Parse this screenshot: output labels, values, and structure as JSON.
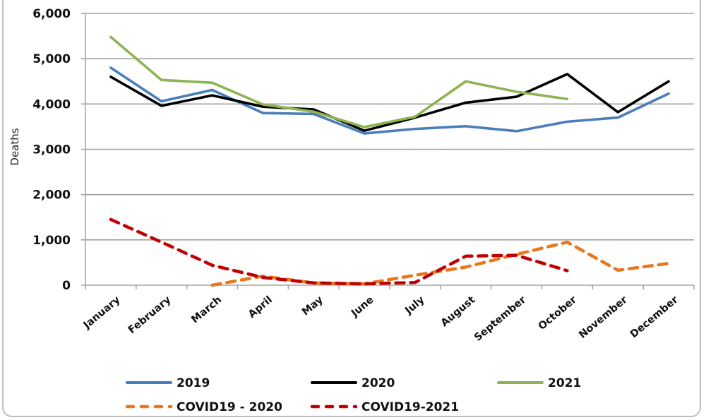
{
  "chart_data": {
    "type": "line",
    "title": "",
    "xlabel": "",
    "ylabel": "Deaths",
    "ylim": [
      0,
      6000
    ],
    "yticks": [
      0,
      1000,
      2000,
      3000,
      4000,
      5000,
      6000
    ],
    "ytick_labels": [
      "0",
      "1,000",
      "2,000",
      "3,000",
      "4,000",
      "5,000",
      "6,000"
    ],
    "grid": "horizontal",
    "categories": [
      "January",
      "February",
      "March",
      "April",
      "May",
      "June",
      "July",
      "August",
      "September",
      "October",
      "November",
      "December"
    ],
    "legend_position": "bottom",
    "series": [
      {
        "name": "2019",
        "style": "solid",
        "color": "#4A7EBB",
        "values": [
          4800,
          4060,
          4310,
          3800,
          3780,
          3350,
          3450,
          3510,
          3400,
          3610,
          3700,
          4230
        ]
      },
      {
        "name": "2020",
        "style": "solid",
        "color": "#000000",
        "values": [
          4600,
          3960,
          4190,
          3940,
          3880,
          3410,
          3700,
          4030,
          4160,
          4660,
          3820,
          4500
        ]
      },
      {
        "name": "2021",
        "style": "solid",
        "color": "#8DB451",
        "values": [
          5480,
          4530,
          4470,
          3990,
          3830,
          3490,
          3720,
          4500,
          4270,
          4110,
          null,
          null
        ]
      },
      {
        "name": "COVID19 - 2020",
        "style": "dashed",
        "color": "#E8771E",
        "values": [
          null,
          null,
          0,
          200,
          50,
          30,
          220,
          400,
          680,
          950,
          330,
          480
        ]
      },
      {
        "name": "COVID19-2021",
        "style": "dashed",
        "color": "#C00000",
        "values": [
          1450,
          950,
          440,
          170,
          50,
          30,
          60,
          640,
          660,
          320,
          null,
          null
        ]
      }
    ]
  }
}
